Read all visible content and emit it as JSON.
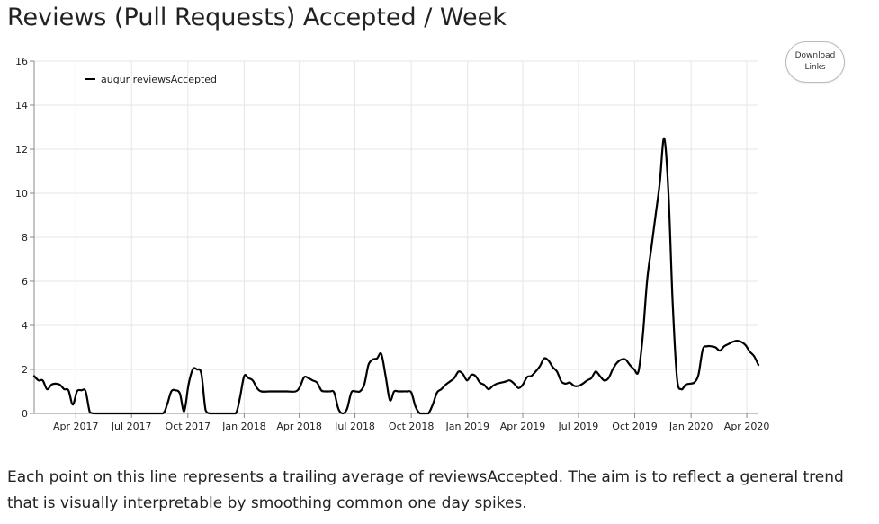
{
  "page": {
    "title": "Reviews (Pull Requests) Accepted / Week",
    "download_button": {
      "line1": "Download",
      "line2": "Links"
    },
    "caption": "Each point on this line represents a trailing average of reviewsAccepted. The aim is to reflect a general trend that is visually interpretable by smoothing common one day spikes."
  },
  "chart_data": {
    "type": "line",
    "title": "Reviews (Pull Requests) Accepted / Week",
    "xlabel": "",
    "ylabel": "",
    "x_range": [
      "2017-01-23",
      "2020-04-20"
    ],
    "ylim": [
      0,
      16
    ],
    "y_ticks": [
      0,
      2,
      4,
      6,
      8,
      10,
      12,
      14,
      16
    ],
    "x_ticks": [
      {
        "date": "2017-04-01",
        "label": "Apr 2017"
      },
      {
        "date": "2017-07-01",
        "label": "Jul 2017"
      },
      {
        "date": "2017-10-01",
        "label": "Oct 2017"
      },
      {
        "date": "2018-01-01",
        "label": "Jan 2018"
      },
      {
        "date": "2018-04-01",
        "label": "Apr 2018"
      },
      {
        "date": "2018-07-01",
        "label": "Jul 2018"
      },
      {
        "date": "2018-10-01",
        "label": "Oct 2018"
      },
      {
        "date": "2019-01-01",
        "label": "Jan 2019"
      },
      {
        "date": "2019-04-01",
        "label": "Apr 2019"
      },
      {
        "date": "2019-07-01",
        "label": "Jul 2019"
      },
      {
        "date": "2019-10-01",
        "label": "Oct 2019"
      },
      {
        "date": "2020-01-01",
        "label": "Jan 2020"
      },
      {
        "date": "2020-04-01",
        "label": "Apr 2020"
      }
    ],
    "grid": true,
    "legend_position": "top-left",
    "colors": {
      "line": "#000000",
      "grid": "#e6e6e6",
      "axis": "#888888"
    },
    "series": [
      {
        "name": "augur reviewsAccepted",
        "points": [
          [
            "2017-01-23",
            1.7
          ],
          [
            "2017-01-30",
            1.5
          ],
          [
            "2017-02-06",
            1.5
          ],
          [
            "2017-02-13",
            1.1
          ],
          [
            "2017-02-20",
            1.3
          ],
          [
            "2017-02-27",
            1.35
          ],
          [
            "2017-03-06",
            1.3
          ],
          [
            "2017-03-13",
            1.1
          ],
          [
            "2017-03-20",
            1.05
          ],
          [
            "2017-03-27",
            0.4
          ],
          [
            "2017-04-03",
            1.0
          ],
          [
            "2017-04-10",
            1.05
          ],
          [
            "2017-04-17",
            1.0
          ],
          [
            "2017-04-24",
            0.05
          ],
          [
            "2017-05-01",
            0.0
          ],
          [
            "2017-05-15",
            0.0
          ],
          [
            "2017-06-01",
            0.0
          ],
          [
            "2017-06-15",
            0.0
          ],
          [
            "2017-07-01",
            0.0
          ],
          [
            "2017-07-15",
            0.0
          ],
          [
            "2017-08-01",
            0.0
          ],
          [
            "2017-08-21",
            0.0
          ],
          [
            "2017-08-28",
            0.4
          ],
          [
            "2017-09-04",
            1.0
          ],
          [
            "2017-09-11",
            1.05
          ],
          [
            "2017-09-18",
            0.9
          ],
          [
            "2017-09-25",
            0.1
          ],
          [
            "2017-10-02",
            1.3
          ],
          [
            "2017-10-09",
            2.0
          ],
          [
            "2017-10-16",
            2.0
          ],
          [
            "2017-10-23",
            1.8
          ],
          [
            "2017-10-30",
            0.15
          ],
          [
            "2017-11-06",
            0.0
          ],
          [
            "2017-11-20",
            0.0
          ],
          [
            "2017-12-04",
            0.0
          ],
          [
            "2017-12-18",
            0.0
          ],
          [
            "2017-12-25",
            0.7
          ],
          [
            "2018-01-01",
            1.7
          ],
          [
            "2018-01-08",
            1.6
          ],
          [
            "2018-01-15",
            1.5
          ],
          [
            "2018-01-22",
            1.15
          ],
          [
            "2018-01-29",
            1.0
          ],
          [
            "2018-02-12",
            1.0
          ],
          [
            "2018-02-26",
            1.0
          ],
          [
            "2018-03-12",
            1.0
          ],
          [
            "2018-03-26",
            1.0
          ],
          [
            "2018-04-02",
            1.2
          ],
          [
            "2018-04-09",
            1.65
          ],
          [
            "2018-04-16",
            1.6
          ],
          [
            "2018-04-23",
            1.5
          ],
          [
            "2018-04-30",
            1.4
          ],
          [
            "2018-05-07",
            1.05
          ],
          [
            "2018-05-14",
            1.0
          ],
          [
            "2018-05-21",
            1.0
          ],
          [
            "2018-05-28",
            0.95
          ],
          [
            "2018-06-04",
            0.2
          ],
          [
            "2018-06-11",
            0.0
          ],
          [
            "2018-06-18",
            0.2
          ],
          [
            "2018-06-25",
            0.95
          ],
          [
            "2018-07-02",
            1.0
          ],
          [
            "2018-07-09",
            1.0
          ],
          [
            "2018-07-16",
            1.3
          ],
          [
            "2018-07-23",
            2.2
          ],
          [
            "2018-07-30",
            2.45
          ],
          [
            "2018-08-06",
            2.5
          ],
          [
            "2018-08-13",
            2.7
          ],
          [
            "2018-08-20",
            1.7
          ],
          [
            "2018-08-27",
            0.6
          ],
          [
            "2018-09-03",
            1.0
          ],
          [
            "2018-09-10",
            1.0
          ],
          [
            "2018-09-17",
            1.0
          ],
          [
            "2018-09-24",
            1.0
          ],
          [
            "2018-10-01",
            0.95
          ],
          [
            "2018-10-08",
            0.3
          ],
          [
            "2018-10-15",
            0.0
          ],
          [
            "2018-10-22",
            0.0
          ],
          [
            "2018-10-29",
            0.0
          ],
          [
            "2018-11-05",
            0.4
          ],
          [
            "2018-11-12",
            0.95
          ],
          [
            "2018-11-19",
            1.1
          ],
          [
            "2018-11-26",
            1.3
          ],
          [
            "2018-12-03",
            1.45
          ],
          [
            "2018-12-10",
            1.6
          ],
          [
            "2018-12-17",
            1.9
          ],
          [
            "2018-12-24",
            1.8
          ],
          [
            "2018-12-31",
            1.5
          ],
          [
            "2019-01-07",
            1.75
          ],
          [
            "2019-01-14",
            1.7
          ],
          [
            "2019-01-21",
            1.4
          ],
          [
            "2019-01-28",
            1.3
          ],
          [
            "2019-02-04",
            1.1
          ],
          [
            "2019-02-11",
            1.25
          ],
          [
            "2019-02-18",
            1.35
          ],
          [
            "2019-02-25",
            1.4
          ],
          [
            "2019-03-04",
            1.45
          ],
          [
            "2019-03-11",
            1.5
          ],
          [
            "2019-03-18",
            1.35
          ],
          [
            "2019-03-25",
            1.15
          ],
          [
            "2019-04-01",
            1.3
          ],
          [
            "2019-04-08",
            1.65
          ],
          [
            "2019-04-15",
            1.7
          ],
          [
            "2019-04-22",
            1.9
          ],
          [
            "2019-04-29",
            2.15
          ],
          [
            "2019-05-06",
            2.5
          ],
          [
            "2019-05-13",
            2.4
          ],
          [
            "2019-05-20",
            2.1
          ],
          [
            "2019-05-27",
            1.9
          ],
          [
            "2019-06-03",
            1.45
          ],
          [
            "2019-06-10",
            1.35
          ],
          [
            "2019-06-17",
            1.4
          ],
          [
            "2019-06-24",
            1.25
          ],
          [
            "2019-07-01",
            1.25
          ],
          [
            "2019-07-08",
            1.35
          ],
          [
            "2019-07-15",
            1.5
          ],
          [
            "2019-07-22",
            1.6
          ],
          [
            "2019-07-29",
            1.9
          ],
          [
            "2019-08-05",
            1.7
          ],
          [
            "2019-08-12",
            1.5
          ],
          [
            "2019-08-19",
            1.6
          ],
          [
            "2019-08-26",
            2.0
          ],
          [
            "2019-09-02",
            2.3
          ],
          [
            "2019-09-09",
            2.45
          ],
          [
            "2019-09-16",
            2.45
          ],
          [
            "2019-09-23",
            2.2
          ],
          [
            "2019-09-30",
            2.0
          ],
          [
            "2019-10-07",
            1.9
          ],
          [
            "2019-10-14",
            3.5
          ],
          [
            "2019-10-21",
            6.0
          ],
          [
            "2019-10-28",
            7.5
          ],
          [
            "2019-11-04",
            9.0
          ],
          [
            "2019-11-11",
            10.5
          ],
          [
            "2019-11-18",
            12.5
          ],
          [
            "2019-11-25",
            10.0
          ],
          [
            "2019-12-02",
            5.0
          ],
          [
            "2019-12-09",
            1.6
          ],
          [
            "2019-12-16",
            1.1
          ],
          [
            "2019-12-23",
            1.3
          ],
          [
            "2019-12-30",
            1.35
          ],
          [
            "2020-01-06",
            1.4
          ],
          [
            "2020-01-13",
            1.75
          ],
          [
            "2020-01-20",
            2.9
          ],
          [
            "2020-01-27",
            3.05
          ],
          [
            "2020-02-03",
            3.05
          ],
          [
            "2020-02-10",
            3.0
          ],
          [
            "2020-02-17",
            2.85
          ],
          [
            "2020-02-24",
            3.05
          ],
          [
            "2020-03-02",
            3.15
          ],
          [
            "2020-03-09",
            3.25
          ],
          [
            "2020-03-16",
            3.3
          ],
          [
            "2020-03-23",
            3.25
          ],
          [
            "2020-03-30",
            3.1
          ],
          [
            "2020-04-06",
            2.8
          ],
          [
            "2020-04-13",
            2.6
          ],
          [
            "2020-04-20",
            2.2
          ]
        ]
      }
    ]
  }
}
